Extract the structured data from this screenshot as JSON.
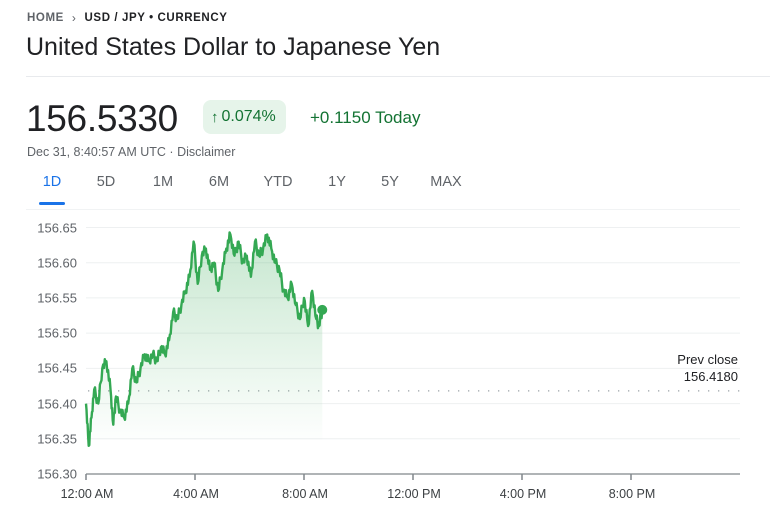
{
  "breadcrumb": {
    "home": "HOME",
    "separator": ">",
    "current": "USD / JPY • CURRENCY"
  },
  "title": "United States Dollar to Japanese Yen",
  "quote": {
    "price": "156.5330",
    "change_percent": "0.074%",
    "change_arrow": "↑",
    "change_today": "+0.1150 Today",
    "timestamp": "Dec 31, 8:40:57 AM UTC",
    "dot": " · ",
    "disclaimer": "Disclaimer"
  },
  "tabs": [
    {
      "label": "1D",
      "active": true
    },
    {
      "label": "5D",
      "active": false
    },
    {
      "label": "1M",
      "active": false
    },
    {
      "label": "6M",
      "active": false
    },
    {
      "label": "YTD",
      "active": false
    },
    {
      "label": "1Y",
      "active": false
    },
    {
      "label": "5Y",
      "active": false
    },
    {
      "label": "MAX",
      "active": false
    }
  ],
  "colors": {
    "positive": "#137333",
    "line": "#34a853",
    "accent": "#1a73e8",
    "badge_bg": "#e6f4ea"
  },
  "prev_close": {
    "label": "Prev close",
    "value": "156.4180"
  },
  "chart_data": {
    "type": "area",
    "title": "USD / JPY 1D",
    "xlabel": "",
    "ylabel": "",
    "y_ticks": [
      "156.65",
      "156.60",
      "156.55",
      "156.50",
      "156.45",
      "156.40",
      "156.35",
      "156.30"
    ],
    "x_ticks": [
      "12:00 AM",
      "4:00 AM",
      "8:00 AM",
      "12:00 PM",
      "4:00 PM",
      "8:00 PM"
    ],
    "ylim": [
      156.3,
      156.65
    ],
    "xlim_hours": [
      0,
      23.5
    ],
    "grid": true,
    "reference_line": {
      "label": "Prev close",
      "value": 156.418
    },
    "series": [
      {
        "name": "USD/JPY",
        "x_hours": [
          0.0,
          0.1,
          0.2,
          0.3,
          0.45,
          0.6,
          0.75,
          0.9,
          1.0,
          1.1,
          1.25,
          1.4,
          1.55,
          1.7,
          1.85,
          2.0,
          2.15,
          2.3,
          2.45,
          2.6,
          2.75,
          2.9,
          3.05,
          3.2,
          3.35,
          3.5,
          3.65,
          3.8,
          3.95,
          4.1,
          4.25,
          4.4,
          4.55,
          4.7,
          4.85,
          5.0,
          5.15,
          5.3,
          5.45,
          5.6,
          5.75,
          5.9,
          6.05,
          6.2,
          6.35,
          6.5,
          6.65,
          6.8,
          6.95,
          7.1,
          7.25,
          7.4,
          7.55,
          7.7,
          7.85,
          8.0,
          8.15,
          8.3,
          8.45,
          8.55,
          8.67
        ],
        "values": [
          156.4,
          156.34,
          156.38,
          156.42,
          156.4,
          156.45,
          156.46,
          156.42,
          156.37,
          156.41,
          156.39,
          156.38,
          156.4,
          156.45,
          156.43,
          156.45,
          156.47,
          156.46,
          156.47,
          156.46,
          156.48,
          156.47,
          156.49,
          156.53,
          156.52,
          156.54,
          156.56,
          156.58,
          156.63,
          156.57,
          156.61,
          156.62,
          156.59,
          156.6,
          156.56,
          156.59,
          156.62,
          156.64,
          156.61,
          156.63,
          156.6,
          156.61,
          156.58,
          156.63,
          156.61,
          156.62,
          156.64,
          156.62,
          156.6,
          156.59,
          156.56,
          156.55,
          156.57,
          156.54,
          156.52,
          156.55,
          156.51,
          156.56,
          156.52,
          156.51,
          156.533
        ]
      }
    ]
  }
}
